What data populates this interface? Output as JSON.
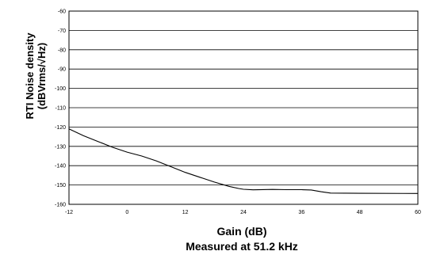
{
  "chart_data": {
    "type": "line",
    "title": "",
    "xlabel": "Gain (dB)",
    "xlabel_line2": "Measured at 51.2 kHz",
    "ylabel_line1": "RTI Noise density",
    "ylabel_line2": "(dBVrms/√Hz)",
    "xlim": [
      -12,
      60
    ],
    "ylim": [
      -160,
      -60
    ],
    "xticks": [
      -12,
      0,
      12,
      24,
      36,
      48,
      60
    ],
    "yticks": [
      -60,
      -70,
      -80,
      -90,
      -100,
      -110,
      -120,
      -130,
      -140,
      -150,
      -160
    ],
    "grid": "horizontal",
    "series": [
      {
        "color": "#000000",
        "x": [
          -12,
          -9,
          -6,
          -3,
          0,
          3,
          6,
          9,
          12,
          15,
          18,
          21,
          23,
          24,
          26,
          30,
          33,
          36,
          38,
          40,
          42,
          48,
          60
        ],
        "y": [
          -121,
          -124.5,
          -127.5,
          -130.5,
          -133,
          -135,
          -137.5,
          -140.5,
          -143.5,
          -146,
          -148.5,
          -150.7,
          -151.8,
          -152.2,
          -152.5,
          -152.3,
          -152.4,
          -152.4,
          -152.6,
          -153.5,
          -154.2,
          -154.3,
          -154.4
        ]
      }
    ]
  }
}
